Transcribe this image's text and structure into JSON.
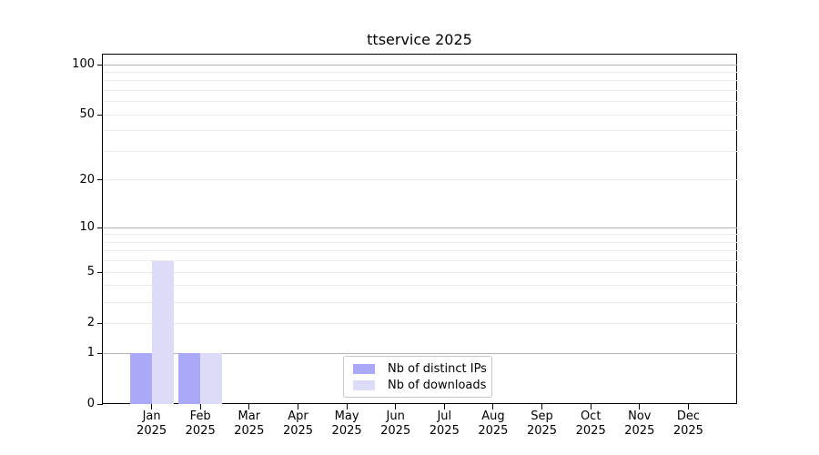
{
  "figure": {
    "title": "ttservice 2025",
    "background": "#ffffff"
  },
  "chart_data": {
    "type": "bar",
    "title": "ttservice 2025",
    "categories": [
      "Jan 2025",
      "Feb 2025",
      "Mar 2025",
      "Apr 2025",
      "May 2025",
      "Jun 2025",
      "Jul 2025",
      "Aug 2025",
      "Sep 2025",
      "Oct 2025",
      "Nov 2025",
      "Dec 2025"
    ],
    "series": [
      {
        "name": "Nb of distinct IPs",
        "color": "#a9a9f7",
        "values": [
          1,
          1,
          0,
          0,
          0,
          0,
          0,
          0,
          0,
          0,
          0,
          0
        ]
      },
      {
        "name": "Nb of downloads",
        "color": "#dcdcf8",
        "values": [
          6,
          1,
          0,
          0,
          0,
          0,
          0,
          0,
          0,
          0,
          0,
          0
        ]
      }
    ],
    "xlabel": "",
    "ylabel": "",
    "y_axis": {
      "scale": "log10(1+v)",
      "tick_values": [
        0,
        1,
        2,
        5,
        10,
        20,
        50,
        100
      ],
      "major_gridlines": [
        1,
        10,
        100
      ],
      "minor_gridlines": [
        2,
        3,
        4,
        5,
        6,
        7,
        8,
        9,
        20,
        30,
        40,
        50,
        60,
        70,
        80,
        90
      ],
      "top_log": 2.0634,
      "range": [
        0,
        114
      ]
    },
    "grid": true,
    "legend_position": "lower center",
    "colors": {
      "major_grid": "#b3b3b3",
      "minor_grid": "#ebebeb",
      "spine": "#000000",
      "text": "#000000"
    }
  },
  "legend": {
    "items": [
      {
        "label": "Nb of distinct IPs",
        "color": "#a9a9f7"
      },
      {
        "label": "Nb of downloads",
        "color": "#dcdcf8"
      }
    ]
  }
}
